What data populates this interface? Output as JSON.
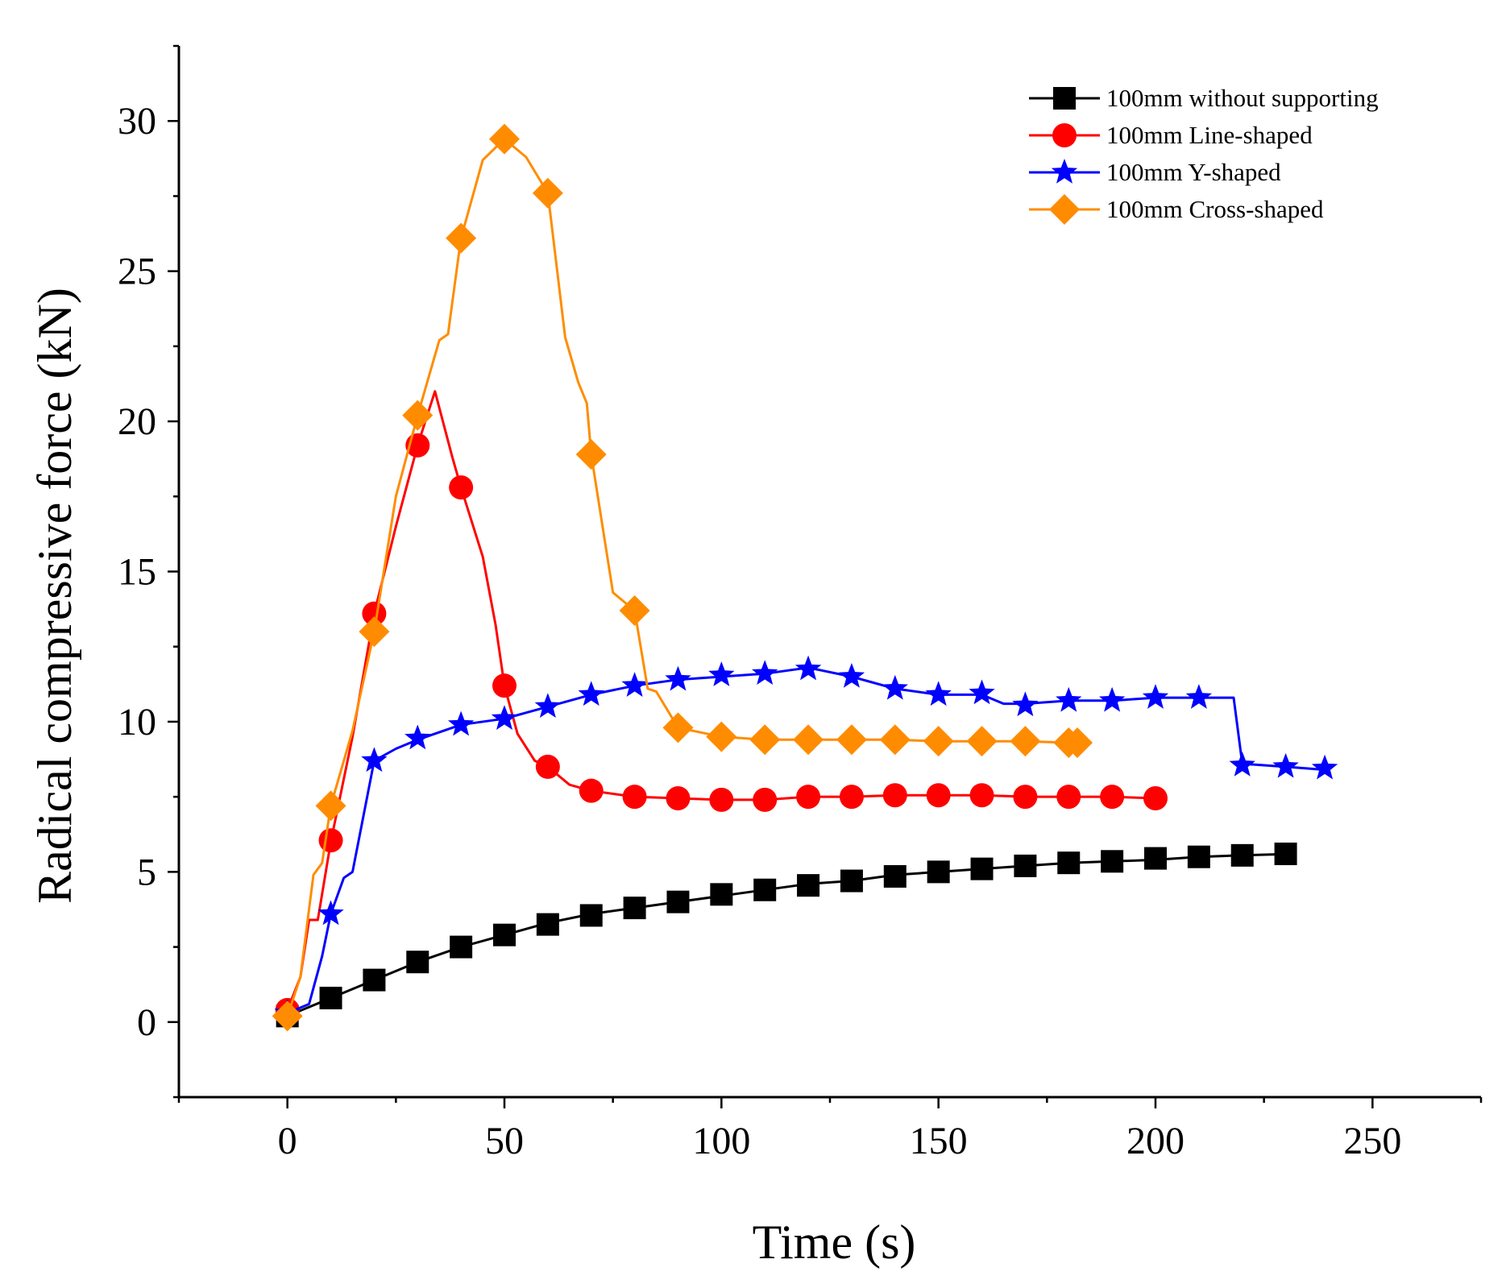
{
  "chart_data": {
    "type": "line",
    "title": "",
    "xlabel": "Time (s)",
    "ylabel": "Radical compressive force (kN)",
    "xlim": [
      -25,
      275
    ],
    "ylim": [
      -2.5,
      32.5
    ],
    "xticks": [
      0,
      50,
      100,
      150,
      200,
      250
    ],
    "xtick_labels": [
      "0",
      "50",
      "100",
      "150",
      "200",
      "250"
    ],
    "yticks": [
      0,
      5,
      10,
      15,
      20,
      25,
      30
    ],
    "ytick_labels": [
      "0",
      "5",
      "10",
      "15",
      "20",
      "25",
      "30"
    ],
    "grid": false,
    "legend_position": "top-right",
    "series": [
      {
        "name": "100mm without supporting",
        "color": "#000000",
        "marker": "square",
        "line": [
          [
            0,
            0.2
          ],
          [
            10,
            0.8
          ],
          [
            20,
            1.4
          ],
          [
            30,
            2.0
          ],
          [
            40,
            2.5
          ],
          [
            50,
            2.9
          ],
          [
            60,
            3.3
          ],
          [
            70,
            3.6
          ],
          [
            80,
            3.8
          ],
          [
            90,
            4.0
          ],
          [
            100,
            4.2
          ],
          [
            110,
            4.4
          ],
          [
            120,
            4.6
          ],
          [
            130,
            4.7
          ],
          [
            140,
            4.9
          ],
          [
            150,
            5.0
          ],
          [
            160,
            5.1
          ],
          [
            170,
            5.2
          ],
          [
            180,
            5.3
          ],
          [
            190,
            5.35
          ],
          [
            200,
            5.4
          ],
          [
            210,
            5.5
          ],
          [
            220,
            5.55
          ],
          [
            232,
            5.6
          ]
        ],
        "points": [
          [
            0,
            0.2
          ],
          [
            10,
            0.8
          ],
          [
            20,
            1.4
          ],
          [
            30,
            2.0
          ],
          [
            40,
            2.5
          ],
          [
            50,
            2.9
          ],
          [
            60,
            3.25
          ],
          [
            70,
            3.55
          ],
          [
            80,
            3.8
          ],
          [
            90,
            4.0
          ],
          [
            100,
            4.25
          ],
          [
            110,
            4.4
          ],
          [
            120,
            4.55
          ],
          [
            130,
            4.7
          ],
          [
            140,
            4.85
          ],
          [
            150,
            5.0
          ],
          [
            160,
            5.1
          ],
          [
            170,
            5.2
          ],
          [
            180,
            5.3
          ],
          [
            190,
            5.35
          ],
          [
            200,
            5.45
          ],
          [
            210,
            5.5
          ],
          [
            220,
            5.55
          ],
          [
            230,
            5.6
          ]
        ]
      },
      {
        "name": "100mm Line-shaped",
        "color": "#ff0000",
        "marker": "circle",
        "line": [
          [
            0,
            0.4
          ],
          [
            3,
            1.5
          ],
          [
            5,
            3.4
          ],
          [
            7,
            3.4
          ],
          [
            10,
            6.0
          ],
          [
            15,
            9.5
          ],
          [
            20,
            13.6
          ],
          [
            25,
            16.5
          ],
          [
            30,
            19.2
          ],
          [
            34,
            21.0
          ],
          [
            38,
            18.8
          ],
          [
            40,
            17.8
          ],
          [
            45,
            15.5
          ],
          [
            48,
            13.2
          ],
          [
            50,
            11.2
          ],
          [
            53,
            9.6
          ],
          [
            57,
            8.7
          ],
          [
            60,
            8.5
          ],
          [
            65,
            7.9
          ],
          [
            70,
            7.7
          ],
          [
            80,
            7.5
          ],
          [
            90,
            7.45
          ],
          [
            100,
            7.4
          ],
          [
            110,
            7.4
          ],
          [
            120,
            7.5
          ],
          [
            130,
            7.5
          ],
          [
            140,
            7.55
          ],
          [
            150,
            7.55
          ],
          [
            160,
            7.55
          ],
          [
            170,
            7.5
          ],
          [
            180,
            7.5
          ],
          [
            190,
            7.5
          ],
          [
            200,
            7.45
          ]
        ],
        "points": [
          [
            0,
            0.4
          ],
          [
            10,
            6.05
          ],
          [
            20,
            13.6
          ],
          [
            30,
            19.2
          ],
          [
            40,
            17.8
          ],
          [
            50,
            11.2
          ],
          [
            60,
            8.5
          ],
          [
            70,
            7.7
          ],
          [
            80,
            7.5
          ],
          [
            90,
            7.45
          ],
          [
            100,
            7.4
          ],
          [
            110,
            7.4
          ],
          [
            120,
            7.5
          ],
          [
            130,
            7.5
          ],
          [
            140,
            7.55
          ],
          [
            150,
            7.55
          ],
          [
            160,
            7.55
          ],
          [
            170,
            7.5
          ],
          [
            180,
            7.5
          ],
          [
            190,
            7.5
          ],
          [
            200,
            7.45
          ]
        ]
      },
      {
        "name": "100mm Y-shaped",
        "color": "#0000ff",
        "marker": "star",
        "line": [
          [
            0,
            0.3
          ],
          [
            5,
            0.6
          ],
          [
            8,
            2.2
          ],
          [
            10,
            3.6
          ],
          [
            13,
            4.8
          ],
          [
            15,
            5.0
          ],
          [
            20,
            8.7
          ],
          [
            25,
            9.1
          ],
          [
            30,
            9.4
          ],
          [
            40,
            9.9
          ],
          [
            50,
            10.1
          ],
          [
            60,
            10.5
          ],
          [
            70,
            10.9
          ],
          [
            80,
            11.2
          ],
          [
            90,
            11.4
          ],
          [
            100,
            11.5
          ],
          [
            110,
            11.6
          ],
          [
            120,
            11.8
          ],
          [
            130,
            11.5
          ],
          [
            140,
            11.1
          ],
          [
            150,
            10.9
          ],
          [
            160,
            10.9
          ],
          [
            165,
            10.6
          ],
          [
            170,
            10.6
          ],
          [
            180,
            10.7
          ],
          [
            190,
            10.7
          ],
          [
            200,
            10.8
          ],
          [
            210,
            10.8
          ],
          [
            218,
            10.8
          ],
          [
            220,
            8.6
          ],
          [
            230,
            8.5
          ],
          [
            239,
            8.4
          ]
        ],
        "points": [
          [
            0,
            0.3
          ],
          [
            10,
            3.6
          ],
          [
            20,
            8.7
          ],
          [
            30,
            9.45
          ],
          [
            40,
            9.9
          ],
          [
            50,
            10.1
          ],
          [
            60,
            10.5
          ],
          [
            70,
            10.9
          ],
          [
            80,
            11.2
          ],
          [
            90,
            11.4
          ],
          [
            100,
            11.55
          ],
          [
            110,
            11.6
          ],
          [
            120,
            11.75
          ],
          [
            130,
            11.5
          ],
          [
            140,
            11.1
          ],
          [
            150,
            10.9
          ],
          [
            160,
            10.95
          ],
          [
            170,
            10.55
          ],
          [
            180,
            10.7
          ],
          [
            190,
            10.7
          ],
          [
            200,
            10.8
          ],
          [
            210,
            10.8
          ],
          [
            220,
            8.55
          ],
          [
            230,
            8.5
          ],
          [
            239,
            8.45
          ]
        ]
      },
      {
        "name": "100mm Cross-shaped",
        "color": "#ff8c00",
        "marker": "diamond",
        "line": [
          [
            0,
            0.2
          ],
          [
            3,
            1.5
          ],
          [
            6,
            4.9
          ],
          [
            8,
            5.3
          ],
          [
            10,
            7.2
          ],
          [
            15,
            9.7
          ],
          [
            20,
            13.0
          ],
          [
            25,
            17.5
          ],
          [
            30,
            20.2
          ],
          [
            35,
            22.7
          ],
          [
            37,
            22.9
          ],
          [
            40,
            26.1
          ],
          [
            45,
            28.7
          ],
          [
            50,
            29.4
          ],
          [
            55,
            28.8
          ],
          [
            60,
            27.6
          ],
          [
            64,
            22.8
          ],
          [
            67,
            21.3
          ],
          [
            69,
            20.6
          ],
          [
            70,
            18.9
          ],
          [
            75,
            14.3
          ],
          [
            80,
            13.7
          ],
          [
            83,
            11.1
          ],
          [
            85,
            11.0
          ],
          [
            90,
            9.8
          ],
          [
            100,
            9.5
          ],
          [
            110,
            9.4
          ],
          [
            120,
            9.4
          ],
          [
            130,
            9.4
          ],
          [
            140,
            9.4
          ],
          [
            150,
            9.35
          ],
          [
            160,
            9.35
          ],
          [
            170,
            9.35
          ],
          [
            180,
            9.3
          ],
          [
            182,
            9.3
          ]
        ],
        "points": [
          [
            0,
            0.2
          ],
          [
            10,
            7.2
          ],
          [
            20,
            13.0
          ],
          [
            30,
            20.2
          ],
          [
            40,
            26.1
          ],
          [
            50,
            29.4
          ],
          [
            60,
            27.6
          ],
          [
            70,
            18.9
          ],
          [
            80,
            13.7
          ],
          [
            90,
            9.8
          ],
          [
            100,
            9.5
          ],
          [
            110,
            9.4
          ],
          [
            120,
            9.4
          ],
          [
            130,
            9.4
          ],
          [
            140,
            9.4
          ],
          [
            150,
            9.35
          ],
          [
            160,
            9.35
          ],
          [
            170,
            9.35
          ],
          [
            180,
            9.3
          ],
          [
            182,
            9.3
          ]
        ]
      }
    ]
  }
}
